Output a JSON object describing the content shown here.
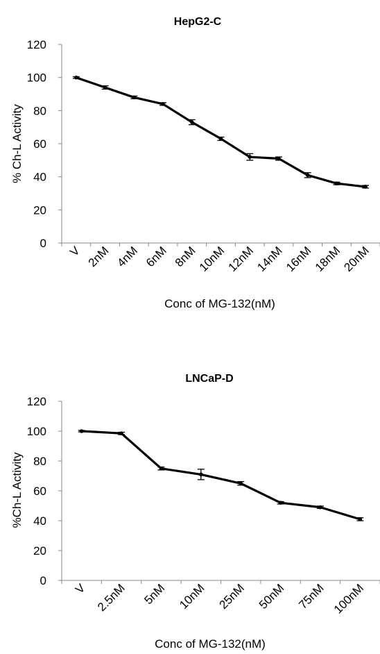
{
  "chart_data": [
    {
      "type": "line",
      "title": "HepG2-C",
      "xlabel": "Conc of MG-132(nM)",
      "ylabel": "% Ch-L Activity",
      "ylim": [
        0,
        120
      ],
      "yticks": [
        0,
        20,
        40,
        60,
        80,
        100,
        120
      ],
      "categories": [
        "V",
        "2nM",
        "4nM",
        "6nM",
        "8nM",
        "10nM",
        "12nM",
        "14nM",
        "16nM",
        "18nM",
        "20nM"
      ],
      "values": [
        100,
        94,
        88,
        84,
        73,
        63,
        52,
        51,
        41,
        36,
        34
      ],
      "errors": [
        0.5,
        1,
        0.8,
        0.8,
        1.5,
        1,
        2,
        1,
        1.5,
        0.8,
        0.8
      ],
      "grid": false
    },
    {
      "type": "line",
      "title": "LNCaP-D",
      "xlabel": "Conc of MG-132(nM)",
      "ylabel": "%Ch-L Activity",
      "ylim": [
        0,
        120
      ],
      "yticks": [
        0,
        20,
        40,
        60,
        80,
        100,
        120
      ],
      "categories": [
        "V",
        "2.5nM",
        "5nM",
        "10nM",
        "25nM",
        "50nM",
        "75nM",
        "100nM"
      ],
      "values": [
        100,
        98.5,
        75,
        71,
        65,
        52,
        49,
        41
      ],
      "errors": [
        0.5,
        0.8,
        1,
        3.5,
        1.2,
        0.8,
        0.8,
        1
      ],
      "grid": false
    }
  ]
}
